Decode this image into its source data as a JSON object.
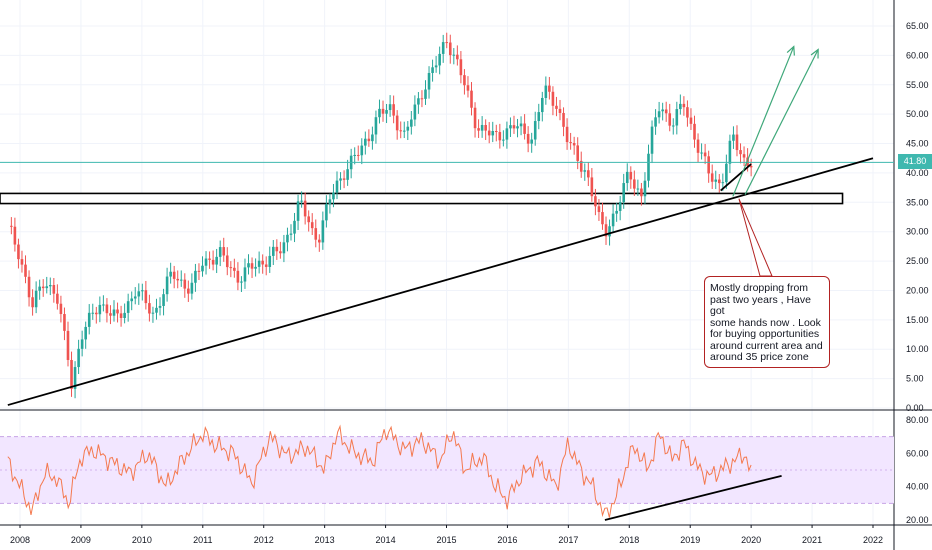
{
  "chart_data": [
    {
      "type": "line",
      "name": "price",
      "yticks": [
        0.0,
        5.0,
        10.0,
        15.0,
        20.0,
        25.0,
        30.0,
        35.0,
        40.0,
        45.0,
        50.0,
        55.0,
        60.0,
        65.0
      ],
      "ytick_labels": [
        "0.00",
        "5.00",
        "10.00",
        "15.00",
        "20.00",
        "25.00",
        "30.00",
        "35.00",
        "40.00",
        "45.00",
        "50.00",
        "55.00",
        "60.00",
        "65.00"
      ],
      "ylim": [
        0,
        69
      ],
      "xlim": [
        2007.8,
        2022.9
      ],
      "current_price": 41.8,
      "current_price_label": "41.80",
      "x": [
        2007.8,
        2008.0,
        2008.2,
        2008.4,
        2008.6,
        2008.8,
        2008.85,
        2009.0,
        2009.3,
        2009.6,
        2009.9,
        2010.2,
        2010.5,
        2010.8,
        2011.0,
        2011.3,
        2011.6,
        2011.8,
        2012.0,
        2012.3,
        2012.6,
        2012.8,
        2012.9,
        2013.1,
        2013.3,
        2013.6,
        2013.9,
        2014.1,
        2014.3,
        2014.6,
        2014.9,
        2015.0,
        2015.2,
        2015.5,
        2015.8,
        2016.1,
        2016.4,
        2016.6,
        2016.8,
        2017.0,
        2017.3,
        2017.5,
        2017.6,
        2017.8,
        2018.0,
        2018.2,
        2018.4,
        2018.5,
        2018.7,
        2018.9,
        2019.1,
        2019.3,
        2019.5,
        2019.7,
        2019.9,
        2020.0
      ],
      "values": [
        31,
        26,
        17,
        22,
        19,
        8,
        4,
        12,
        18,
        15,
        20,
        16,
        23,
        20,
        25,
        26,
        22,
        24,
        25,
        27,
        35,
        30,
        29,
        36,
        40,
        44,
        50,
        51,
        46,
        54,
        60,
        63,
        58,
        48,
        46,
        48,
        46,
        54,
        52,
        45,
        40,
        32,
        30,
        34,
        40,
        36,
        48,
        52,
        48,
        52,
        45,
        40,
        38,
        46,
        42,
        41.8
      ],
      "supports": [
        {
          "x": [
            2007.8,
            2022.0
          ],
          "y": [
            0.5,
            42.5
          ]
        },
        {
          "x": [
            2019.5,
            2020.0
          ],
          "y": [
            37.0,
            41.5
          ]
        }
      ],
      "zone": {
        "y": [
          35.3,
          36.0
        ],
        "x": [
          2007.8,
          2021.5
        ]
      },
      "projections": [
        {
          "x": [
            2019.7,
            2020.7
          ],
          "y": [
            36.0,
            61.5
          ]
        },
        {
          "x": [
            2019.9,
            2021.1
          ],
          "y": [
            36.3,
            61.0
          ]
        }
      ],
      "annotation": "Mostly dropping from\npast two years , Have got\nsome hands now . Look\nfor buying opportunities\naround current area and\naround 35 price zone"
    },
    {
      "type": "line",
      "name": "oscillator",
      "yticks": [
        20.0,
        40.0,
        60.0,
        80.0
      ],
      "ytick_labels": [
        "20.00",
        "40.00",
        "60.00",
        "80.00"
      ],
      "ylim": [
        14,
        83
      ],
      "band": [
        30,
        70
      ],
      "x": [
        2007.8,
        2008.0,
        2008.2,
        2008.4,
        2008.6,
        2008.8,
        2009.0,
        2009.2,
        2009.5,
        2009.8,
        2010.1,
        2010.4,
        2010.7,
        2011.0,
        2011.2,
        2011.5,
        2011.8,
        2012.1,
        2012.4,
        2012.7,
        2013.0,
        2013.2,
        2013.5,
        2013.8,
        2014.0,
        2014.3,
        2014.6,
        2014.9,
        2015.1,
        2015.3,
        2015.6,
        2015.8,
        2016.0,
        2016.2,
        2016.5,
        2016.8,
        2017.0,
        2017.2,
        2017.4,
        2017.6,
        2017.8,
        2018.0,
        2018.1,
        2018.3,
        2018.5,
        2018.7,
        2018.9,
        2019.1,
        2019.3,
        2019.5,
        2019.7,
        2019.9,
        2020.0
      ],
      "values": [
        55,
        40,
        25,
        48,
        45,
        30,
        58,
        62,
        55,
        48,
        60,
        40,
        58,
        72,
        65,
        60,
        42,
        70,
        58,
        64,
        50,
        72,
        60,
        55,
        75,
        62,
        68,
        55,
        74,
        50,
        58,
        40,
        32,
        45,
        55,
        40,
        66,
        50,
        40,
        22,
        35,
        58,
        64,
        50,
        72,
        56,
        66,
        52,
        46,
        50,
        55,
        60,
        47
      ],
      "supports": [
        {
          "x": [
            2017.6,
            2020.5
          ],
          "y": [
            20.0,
            46.5
          ]
        }
      ]
    }
  ],
  "x_axis": {
    "ticks": [
      2008,
      2009,
      2010,
      2011,
      2012,
      2013,
      2014,
      2015,
      2016,
      2017,
      2018,
      2019,
      2020,
      2021,
      2022
    ],
    "labels": [
      "2008",
      "2009",
      "2010",
      "2011",
      "2012",
      "2013",
      "2014",
      "2015",
      "2016",
      "2017",
      "2018",
      "2019",
      "2020",
      "2021",
      "2022"
    ]
  },
  "colors": {
    "up": "#26a69a",
    "down": "#ef5350",
    "trend": "#000000",
    "projection": "#3fa87a",
    "price_line": "#3fb8af",
    "oscillator": "#f4794f",
    "band_fill": "#f2e6ff",
    "band_edge": "#c7a3e6",
    "note_border": "#b22222",
    "grid": "#f0f3fa"
  }
}
